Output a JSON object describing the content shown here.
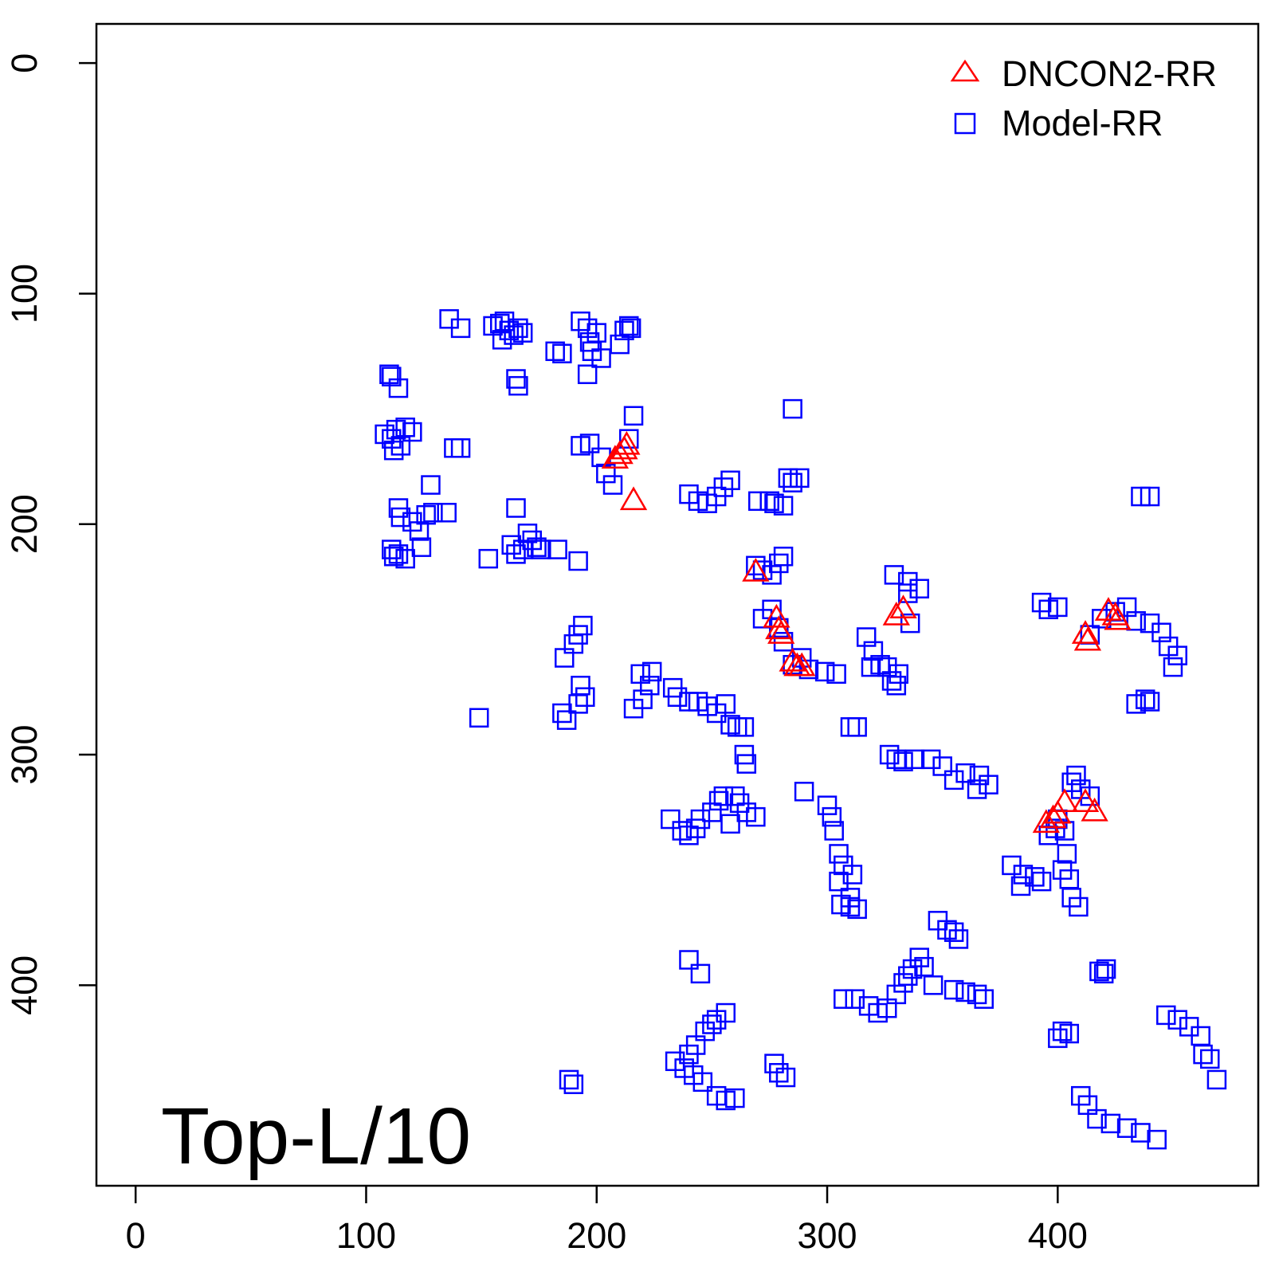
{
  "chart_data": {
    "type": "scatter",
    "title": "",
    "xlabel": "",
    "ylabel": "",
    "xlim": [
      -17,
      487
    ],
    "ylim": [
      -17,
      487
    ],
    "y_inverted": true,
    "x_ticks": [
      "0",
      "100",
      "200",
      "300",
      "400"
    ],
    "y_ticks": [
      "0",
      "100",
      "200",
      "300",
      "400"
    ],
    "grid": false,
    "legend_position": "top-right",
    "annotation": "Top-L/10",
    "series": [
      {
        "name": "DNCON2-RR",
        "marker": "triangle-open",
        "color": "#ff0000",
        "points": [
          [
            208,
            172
          ],
          [
            210,
            170
          ],
          [
            212,
            168
          ],
          [
            213,
            166
          ],
          [
            216,
            190
          ],
          [
            269,
            221
          ],
          [
            278,
            241
          ],
          [
            279,
            246
          ],
          [
            280,
            248
          ],
          [
            285,
            260
          ],
          [
            287,
            262
          ],
          [
            289,
            262
          ],
          [
            330,
            240
          ],
          [
            333,
            237
          ],
          [
            412,
            248
          ],
          [
            413,
            251
          ],
          [
            422,
            238
          ],
          [
            425,
            240
          ],
          [
            426,
            242
          ],
          [
            395,
            330
          ],
          [
            398,
            328
          ],
          [
            400,
            326
          ],
          [
            403,
            321
          ],
          [
            412,
            321
          ],
          [
            416,
            325
          ]
        ]
      },
      {
        "name": "Model-RR",
        "marker": "square-open",
        "color": "#0000ff",
        "points": [
          [
            136,
            111
          ],
          [
            141,
            115
          ],
          [
            155,
            114
          ],
          [
            158,
            113
          ],
          [
            160,
            112
          ],
          [
            162,
            116
          ],
          [
            164,
            118
          ],
          [
            159,
            120
          ],
          [
            166,
            115
          ],
          [
            168,
            117
          ],
          [
            182,
            125
          ],
          [
            185,
            126
          ],
          [
            193,
            112
          ],
          [
            196,
            115
          ],
          [
            197,
            121
          ],
          [
            198,
            125
          ],
          [
            200,
            117
          ],
          [
            202,
            128
          ],
          [
            196,
            135
          ],
          [
            212,
            116
          ],
          [
            214,
            114
          ],
          [
            215,
            115
          ],
          [
            210,
            122
          ],
          [
            165,
            137
          ],
          [
            166,
            140
          ],
          [
            110,
            135
          ],
          [
            111,
            136
          ],
          [
            114,
            141
          ],
          [
            108,
            161
          ],
          [
            111,
            163
          ],
          [
            113,
            159
          ],
          [
            115,
            166
          ],
          [
            117,
            158
          ],
          [
            120,
            160
          ],
          [
            112,
            168
          ],
          [
            138,
            167
          ],
          [
            141,
            167
          ],
          [
            193,
            166
          ],
          [
            197,
            165
          ],
          [
            202,
            171
          ],
          [
            204,
            178
          ],
          [
            207,
            183
          ],
          [
            214,
            163
          ],
          [
            216,
            153
          ],
          [
            114,
            193
          ],
          [
            115,
            197
          ],
          [
            120,
            199
          ],
          [
            123,
            203
          ],
          [
            126,
            196
          ],
          [
            129,
            195
          ],
          [
            135,
            195
          ],
          [
            128,
            183
          ],
          [
            111,
            211
          ],
          [
            112,
            214
          ],
          [
            114,
            213
          ],
          [
            117,
            215
          ],
          [
            124,
            210
          ],
          [
            153,
            215
          ],
          [
            163,
            209
          ],
          [
            165,
            213
          ],
          [
            168,
            211
          ],
          [
            170,
            204
          ],
          [
            172,
            207
          ],
          [
            174,
            210
          ],
          [
            165,
            193
          ],
          [
            176,
            211
          ],
          [
            183,
            211
          ],
          [
            192,
            216
          ],
          [
            240,
            187
          ],
          [
            244,
            190
          ],
          [
            248,
            191
          ],
          [
            252,
            188
          ],
          [
            255,
            184
          ],
          [
            258,
            181
          ],
          [
            270,
            190
          ],
          [
            275,
            190
          ],
          [
            277,
            191
          ],
          [
            281,
            192
          ],
          [
            283,
            180
          ],
          [
            285,
            182
          ],
          [
            288,
            180
          ],
          [
            285,
            150
          ],
          [
            269,
            218
          ],
          [
            272,
            220
          ],
          [
            276,
            222
          ],
          [
            279,
            217
          ],
          [
            281,
            214
          ],
          [
            272,
            241
          ],
          [
            276,
            237
          ],
          [
            279,
            245
          ],
          [
            281,
            251
          ],
          [
            285,
            261
          ],
          [
            289,
            258
          ],
          [
            292,
            263
          ],
          [
            299,
            264
          ],
          [
            304,
            265
          ],
          [
            186,
            258
          ],
          [
            190,
            252
          ],
          [
            192,
            248
          ],
          [
            194,
            244
          ],
          [
            149,
            284
          ],
          [
            185,
            282
          ],
          [
            187,
            285
          ],
          [
            192,
            278
          ],
          [
            195,
            275
          ],
          [
            193,
            270
          ],
          [
            216,
            280
          ],
          [
            220,
            276
          ],
          [
            223,
            270
          ],
          [
            224,
            264
          ],
          [
            219,
            265
          ],
          [
            235,
            275
          ],
          [
            240,
            277
          ],
          [
            244,
            277
          ],
          [
            248,
            279
          ],
          [
            252,
            282
          ],
          [
            258,
            287
          ],
          [
            261,
            288
          ],
          [
            264,
            288
          ],
          [
            264,
            300
          ],
          [
            265,
            304
          ],
          [
            233,
            271
          ],
          [
            256,
            278
          ],
          [
            317,
            249
          ],
          [
            320,
            255
          ],
          [
            319,
            262
          ],
          [
            323,
            261
          ],
          [
            326,
            262
          ],
          [
            328,
            268
          ],
          [
            330,
            270
          ],
          [
            331,
            265
          ],
          [
            329,
            222
          ],
          [
            335,
            225
          ],
          [
            335,
            230
          ],
          [
            340,
            228
          ],
          [
            336,
            243
          ],
          [
            310,
            288
          ],
          [
            313,
            288
          ],
          [
            327,
            300
          ],
          [
            330,
            302
          ],
          [
            333,
            303
          ],
          [
            338,
            302
          ],
          [
            345,
            302
          ],
          [
            350,
            305
          ],
          [
            355,
            311
          ],
          [
            360,
            308
          ],
          [
            366,
            309
          ],
          [
            370,
            313
          ],
          [
            365,
            315
          ],
          [
            290,
            316
          ],
          [
            232,
            328
          ],
          [
            237,
            333
          ],
          [
            240,
            335
          ],
          [
            243,
            332
          ],
          [
            245,
            328
          ],
          [
            250,
            325
          ],
          [
            253,
            320
          ],
          [
            255,
            318
          ],
          [
            260,
            318
          ],
          [
            262,
            321
          ],
          [
            265,
            325
          ],
          [
            269,
            327
          ],
          [
            258,
            330
          ],
          [
            300,
            322
          ],
          [
            302,
            327
          ],
          [
            303,
            333
          ],
          [
            305,
            343
          ],
          [
            307,
            348
          ],
          [
            311,
            352
          ],
          [
            310,
            362
          ],
          [
            313,
            367
          ],
          [
            310,
            366
          ],
          [
            306,
            365
          ],
          [
            305,
            355
          ],
          [
            385,
            352
          ],
          [
            390,
            353
          ],
          [
            393,
            355
          ],
          [
            380,
            348
          ],
          [
            384,
            357
          ],
          [
            396,
            335
          ],
          [
            399,
            332
          ],
          [
            400,
            328
          ],
          [
            403,
            333
          ],
          [
            408,
            309
          ],
          [
            406,
            312
          ],
          [
            410,
            315
          ],
          [
            414,
            318
          ],
          [
            404,
            343
          ],
          [
            402,
            350
          ],
          [
            405,
            354
          ],
          [
            406,
            362
          ],
          [
            409,
            366
          ],
          [
            414,
            248
          ],
          [
            419,
            241
          ],
          [
            425,
            238
          ],
          [
            430,
            236
          ],
          [
            434,
            242
          ],
          [
            440,
            243
          ],
          [
            445,
            247
          ],
          [
            448,
            253
          ],
          [
            452,
            257
          ],
          [
            450,
            262
          ],
          [
            393,
            234
          ],
          [
            396,
            237
          ],
          [
            400,
            236
          ],
          [
            434,
            278
          ],
          [
            438,
            276
          ],
          [
            440,
            277
          ],
          [
            436,
            188
          ],
          [
            440,
            188
          ],
          [
            307,
            406
          ],
          [
            312,
            406
          ],
          [
            318,
            409
          ],
          [
            322,
            412
          ],
          [
            326,
            410
          ],
          [
            330,
            404
          ],
          [
            333,
            399
          ],
          [
            335,
            396
          ],
          [
            337,
            393
          ],
          [
            340,
            388
          ],
          [
            342,
            392
          ],
          [
            346,
            400
          ],
          [
            348,
            372
          ],
          [
            352,
            376
          ],
          [
            355,
            377
          ],
          [
            357,
            380
          ],
          [
            355,
            402
          ],
          [
            360,
            403
          ],
          [
            365,
            404
          ],
          [
            368,
            406
          ],
          [
            418,
            394
          ],
          [
            420,
            395
          ],
          [
            421,
            393
          ],
          [
            400,
            423
          ],
          [
            402,
            420
          ],
          [
            405,
            421
          ],
          [
            240,
            389
          ],
          [
            245,
            395
          ],
          [
            234,
            433
          ],
          [
            240,
            430
          ],
          [
            243,
            426
          ],
          [
            247,
            420
          ],
          [
            250,
            417
          ],
          [
            252,
            415
          ],
          [
            256,
            412
          ],
          [
            238,
            436
          ],
          [
            242,
            439
          ],
          [
            246,
            442
          ],
          [
            252,
            448
          ],
          [
            256,
            450
          ],
          [
            260,
            449
          ],
          [
            188,
            441
          ],
          [
            190,
            443
          ],
          [
            277,
            434
          ],
          [
            279,
            438
          ],
          [
            282,
            440
          ],
          [
            410,
            448
          ],
          [
            413,
            452
          ],
          [
            417,
            458
          ],
          [
            423,
            460
          ],
          [
            430,
            462
          ],
          [
            436,
            464
          ],
          [
            443,
            467
          ],
          [
            447,
            413
          ],
          [
            452,
            415
          ],
          [
            457,
            418
          ],
          [
            462,
            422
          ],
          [
            463,
            430
          ],
          [
            466,
            432
          ],
          [
            469,
            441
          ]
        ]
      }
    ]
  }
}
